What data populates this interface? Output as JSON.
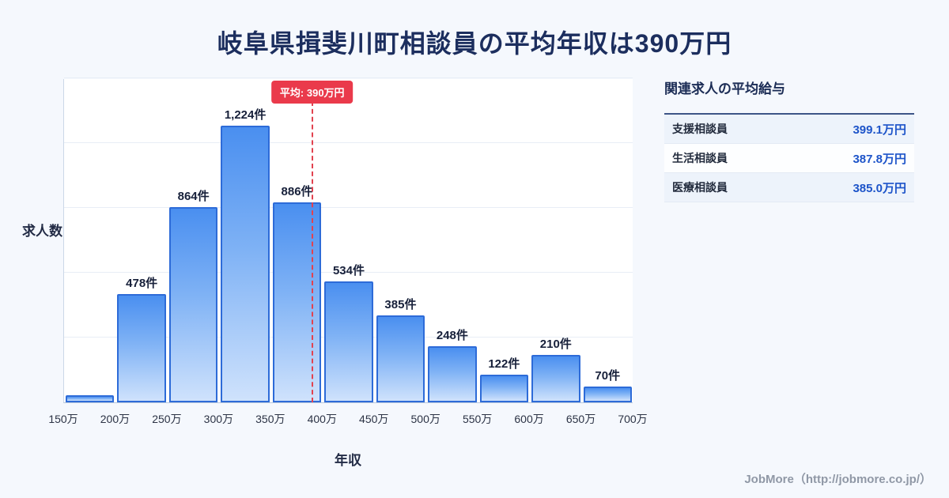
{
  "page": {
    "title": "岐阜県揖斐川町相談員の平均年収は390万円",
    "footer": "JobMore（http://jobmore.co.jp/）"
  },
  "chart_data": {
    "type": "bar",
    "title": "岐阜県揖斐川町相談員の平均年収は390万円",
    "xlabel": "年収",
    "ylabel": "求人数",
    "x_ticks": [
      "150万",
      "200万",
      "250万",
      "300万",
      "350万",
      "400万",
      "450万",
      "500万",
      "550万",
      "600万",
      "650万",
      "700万"
    ],
    "values": [
      30,
      478,
      864,
      1224,
      886,
      534,
      385,
      248,
      122,
      210,
      70
    ],
    "bar_labels": [
      "",
      "478件",
      "864件",
      "1,224件",
      "886件",
      "534件",
      "385件",
      "248件",
      "122件",
      "210件",
      "70件"
    ],
    "ylim": [
      0,
      1400
    ],
    "grid": true,
    "legend": "none",
    "average": {
      "value": 390,
      "label": "平均: 390万円",
      "x_range": [
        150,
        700
      ]
    }
  },
  "side_panel": {
    "title": "関連求人の平均給与",
    "rows": [
      {
        "label": "支援相談員",
        "value": "399.1万円"
      },
      {
        "label": "生活相談員",
        "value": "387.8万円"
      },
      {
        "label": "医療相談員",
        "value": "385.0万円"
      }
    ]
  },
  "colors": {
    "background": "#f5f8fd",
    "title_text": "#1c2e5e",
    "bar_fill_top": "#4a8ff0",
    "bar_fill_bottom": "#cfe2fc",
    "bar_border": "#2d6bd8",
    "average_line": "#e2424f",
    "average_badge_bg": "#ea3a4b",
    "salary_value_text": "#1d54c9",
    "footer_text": "#9098a6"
  }
}
